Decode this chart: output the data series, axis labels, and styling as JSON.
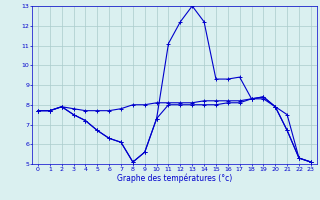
{
  "xlabel": "Graphe des températures (°c)",
  "xlim": [
    -0.5,
    23.5
  ],
  "ylim": [
    5,
    13
  ],
  "yticks": [
    5,
    6,
    7,
    8,
    9,
    10,
    11,
    12,
    13
  ],
  "xticks": [
    0,
    1,
    2,
    3,
    4,
    5,
    6,
    7,
    8,
    9,
    10,
    11,
    12,
    13,
    14,
    15,
    16,
    17,
    18,
    19,
    20,
    21,
    22,
    23
  ],
  "bg_color": "#daf0f0",
  "grid_color": "#aacccc",
  "line_color": "#0000cc",
  "line1": {
    "x": [
      0,
      1,
      2,
      3,
      4,
      5,
      6,
      7,
      8,
      9,
      10,
      11,
      12,
      13,
      14,
      15,
      16,
      17,
      18,
      19,
      20,
      21,
      22,
      23
    ],
    "y": [
      7.7,
      7.7,
      7.9,
      7.8,
      7.7,
      7.7,
      7.7,
      7.8,
      8.0,
      8.0,
      8.1,
      8.1,
      8.1,
      8.1,
      8.2,
      8.2,
      8.2,
      8.2,
      8.3,
      8.3,
      7.9,
      7.5,
      5.3,
      5.1
    ]
  },
  "line2": {
    "x": [
      0,
      1,
      2,
      3,
      4,
      5,
      6,
      7,
      8,
      9,
      10,
      11,
      12,
      13,
      14,
      15,
      16,
      17,
      18,
      19,
      20,
      21,
      22,
      23
    ],
    "y": [
      7.7,
      7.7,
      7.9,
      7.5,
      7.2,
      6.7,
      6.3,
      6.1,
      5.1,
      5.6,
      7.3,
      11.1,
      12.2,
      13.0,
      12.2,
      9.3,
      9.3,
      9.4,
      8.3,
      8.4,
      7.9,
      6.7,
      5.3,
      5.1
    ]
  },
  "line3": {
    "x": [
      0,
      1,
      2,
      3,
      4,
      5,
      6,
      7,
      8,
      9,
      10,
      11,
      12,
      13,
      14,
      15,
      16,
      17,
      18,
      19,
      20,
      21,
      22,
      23
    ],
    "y": [
      7.7,
      7.7,
      7.9,
      7.5,
      7.2,
      6.7,
      6.3,
      6.1,
      5.1,
      5.6,
      7.3,
      8.0,
      8.0,
      8.0,
      8.0,
      8.0,
      8.1,
      8.1,
      8.3,
      8.4,
      7.9,
      6.7,
      5.3,
      5.1
    ]
  },
  "tick_fontsize": 4.5,
  "xlabel_fontsize": 5.5
}
